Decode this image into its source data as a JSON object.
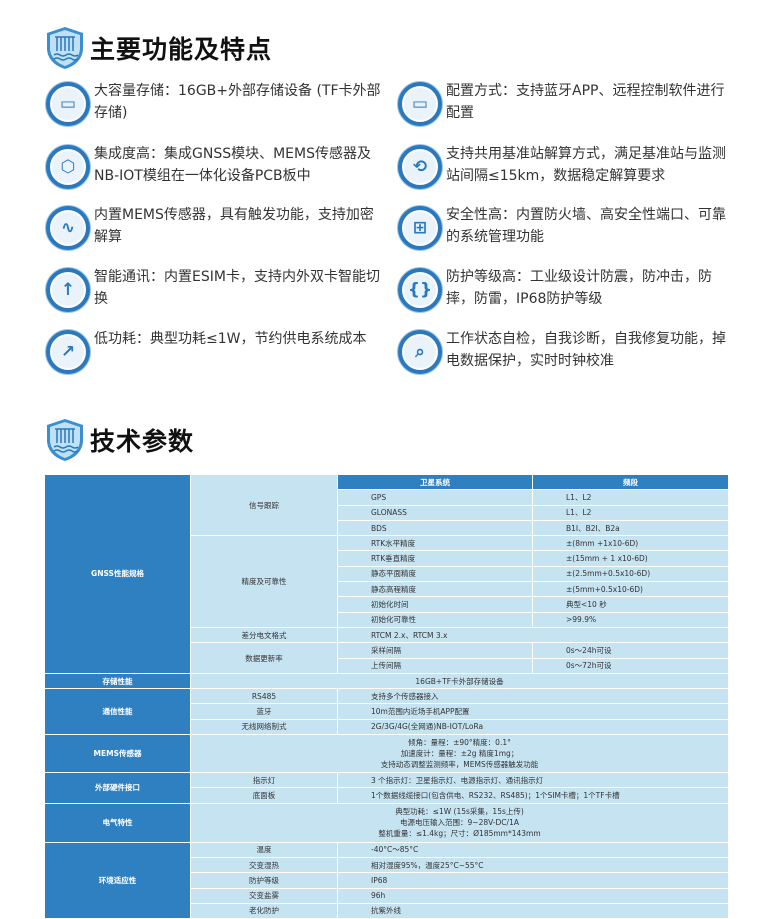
{
  "section1": {
    "title": "主要功能及特点",
    "icon": "shield-waves-icon"
  },
  "features": [
    {
      "icon": "floppy-disk-icon",
      "text": "大容量存储：16GB+外部存储设备 (TF卡外部存储)"
    },
    {
      "icon": "monitor-icon",
      "text": "配置方式：支持蓝牙APP、远程控制软件进行配置"
    },
    {
      "icon": "cube-icon",
      "text": "集成度高：集成GNSS模块、MEMS传感器及NB-IOT模组在一体化设备PCB板中"
    },
    {
      "icon": "sync-icon",
      "text": "支持共用基准站解算方式，满足基准站与监测站间隔≤15km，数据稳定解算要求"
    },
    {
      "icon": "pulse-icon",
      "text": "内置MEMS传感器，具有触发功能，支持加密解算"
    },
    {
      "icon": "grid-icon",
      "text": "安全性高：内置防火墙、高安全性端口、可靠的系统管理功能"
    },
    {
      "icon": "upload-cycle-icon",
      "text": "智能通讯：内置ESIM卡，支持内外双卡智能切换"
    },
    {
      "icon": "brackets-wave-icon",
      "text": "防护等级高：工业级设计防震，防冲击，防摔，防雷，IP68防护等级"
    },
    {
      "icon": "chart-icon",
      "text": "低功耗：典型功耗≤1W，节约供电系统成本"
    },
    {
      "icon": "shield-search-icon",
      "text": "工作状态自检，自我诊断，自我修复功能，掉电数据保护，实时时钟校准"
    }
  ],
  "section2": {
    "title": "技术参数",
    "icon": "shield-waves-icon"
  },
  "table": {
    "gnss": "GNSS性能规格",
    "h_sat": "卫星系统",
    "h_band": "频段",
    "track": "信号跟踪",
    "gps": "GPS",
    "gps_v": "L1、L2",
    "glo": "GLONASS",
    "glo_v": "L1、L2",
    "bds": "BDS",
    "bds_v": "B1I、B2I、B2a",
    "acc": "精度及可靠性",
    "rtkh": "RTK水平精度",
    "rtkh_v": "±(8mm +1x10-6D)",
    "rtkv": "RTK垂直精度",
    "rtkv_v": "±(15mm + 1 x10-6D)",
    "sp": "静态平面精度",
    "sp_v": "±(2.5mm+0.5x10-6D)",
    "sh": "静态高程精度",
    "sh_v": "±(5mm+0.5x10-6D)",
    "it": "初始化时间",
    "it_v": "典型<10 秒",
    "ir": "初始化可靠性",
    "ir_v": ">99.9%",
    "diff": "差分电文格式",
    "diff_v": "RTCM 2.x、RTCM 3.x",
    "rate": "数据更新率",
    "samp": "采样间隔",
    "samp_v": "0s～24h可设",
    "up": "上传间隔",
    "up_v": "0s～72h可设",
    "storage": "存储性能",
    "storage_v": "16GB+TF卡外部存储设备",
    "comm": "通信性能",
    "rs485": "RS485",
    "rs485_v": "支持多个传感器接入",
    "bt": "蓝牙",
    "bt_v": "10m范围内近场手机APP配置",
    "net": "无线网络制式",
    "net_v": "2G/3G/4G(全网通)NB-IOT/LoRa",
    "mems": "MEMS传感器",
    "mems_v": [
      "倾角：量程：±90°精度：0.1°",
      "加速度计：量程：±2g 精度1mg；",
      "支持动态调整监测频率，MEMS传感器触发功能"
    ],
    "hw": "外部硬件接口",
    "led": "指示灯",
    "led_v": "3 个指示灯：卫星指示灯、电源指示灯、通讯指示灯",
    "base": "底面板",
    "base_v": "1个数据线缆接口(包含供电、RS232、RS485)；1个SIM卡槽；1个TF卡槽",
    "elec": "电气特性",
    "elec_v": [
      "典型功耗：≤1W (15s采集，15s上传)",
      "电源电压输入范围：9~28V-DC/1A",
      "整机重量：≤1.4kg；尺寸：Ø185mm*143mm"
    ],
    "env": "环境适应性",
    "temp": "温度",
    "temp_v": "-40°C～85°C",
    "hum": "交变湿热",
    "hum_v": "相对湿度95%，温度25°C~55°C",
    "prot": "防护等级",
    "prot_v": "IP68",
    "salt": "交变盐雾",
    "salt_v": "96h",
    "age": "老化防护",
    "age_v": "抗紫外线"
  },
  "colors": {
    "primary": "#2f80c0",
    "cell": "#c6e3f1"
  }
}
